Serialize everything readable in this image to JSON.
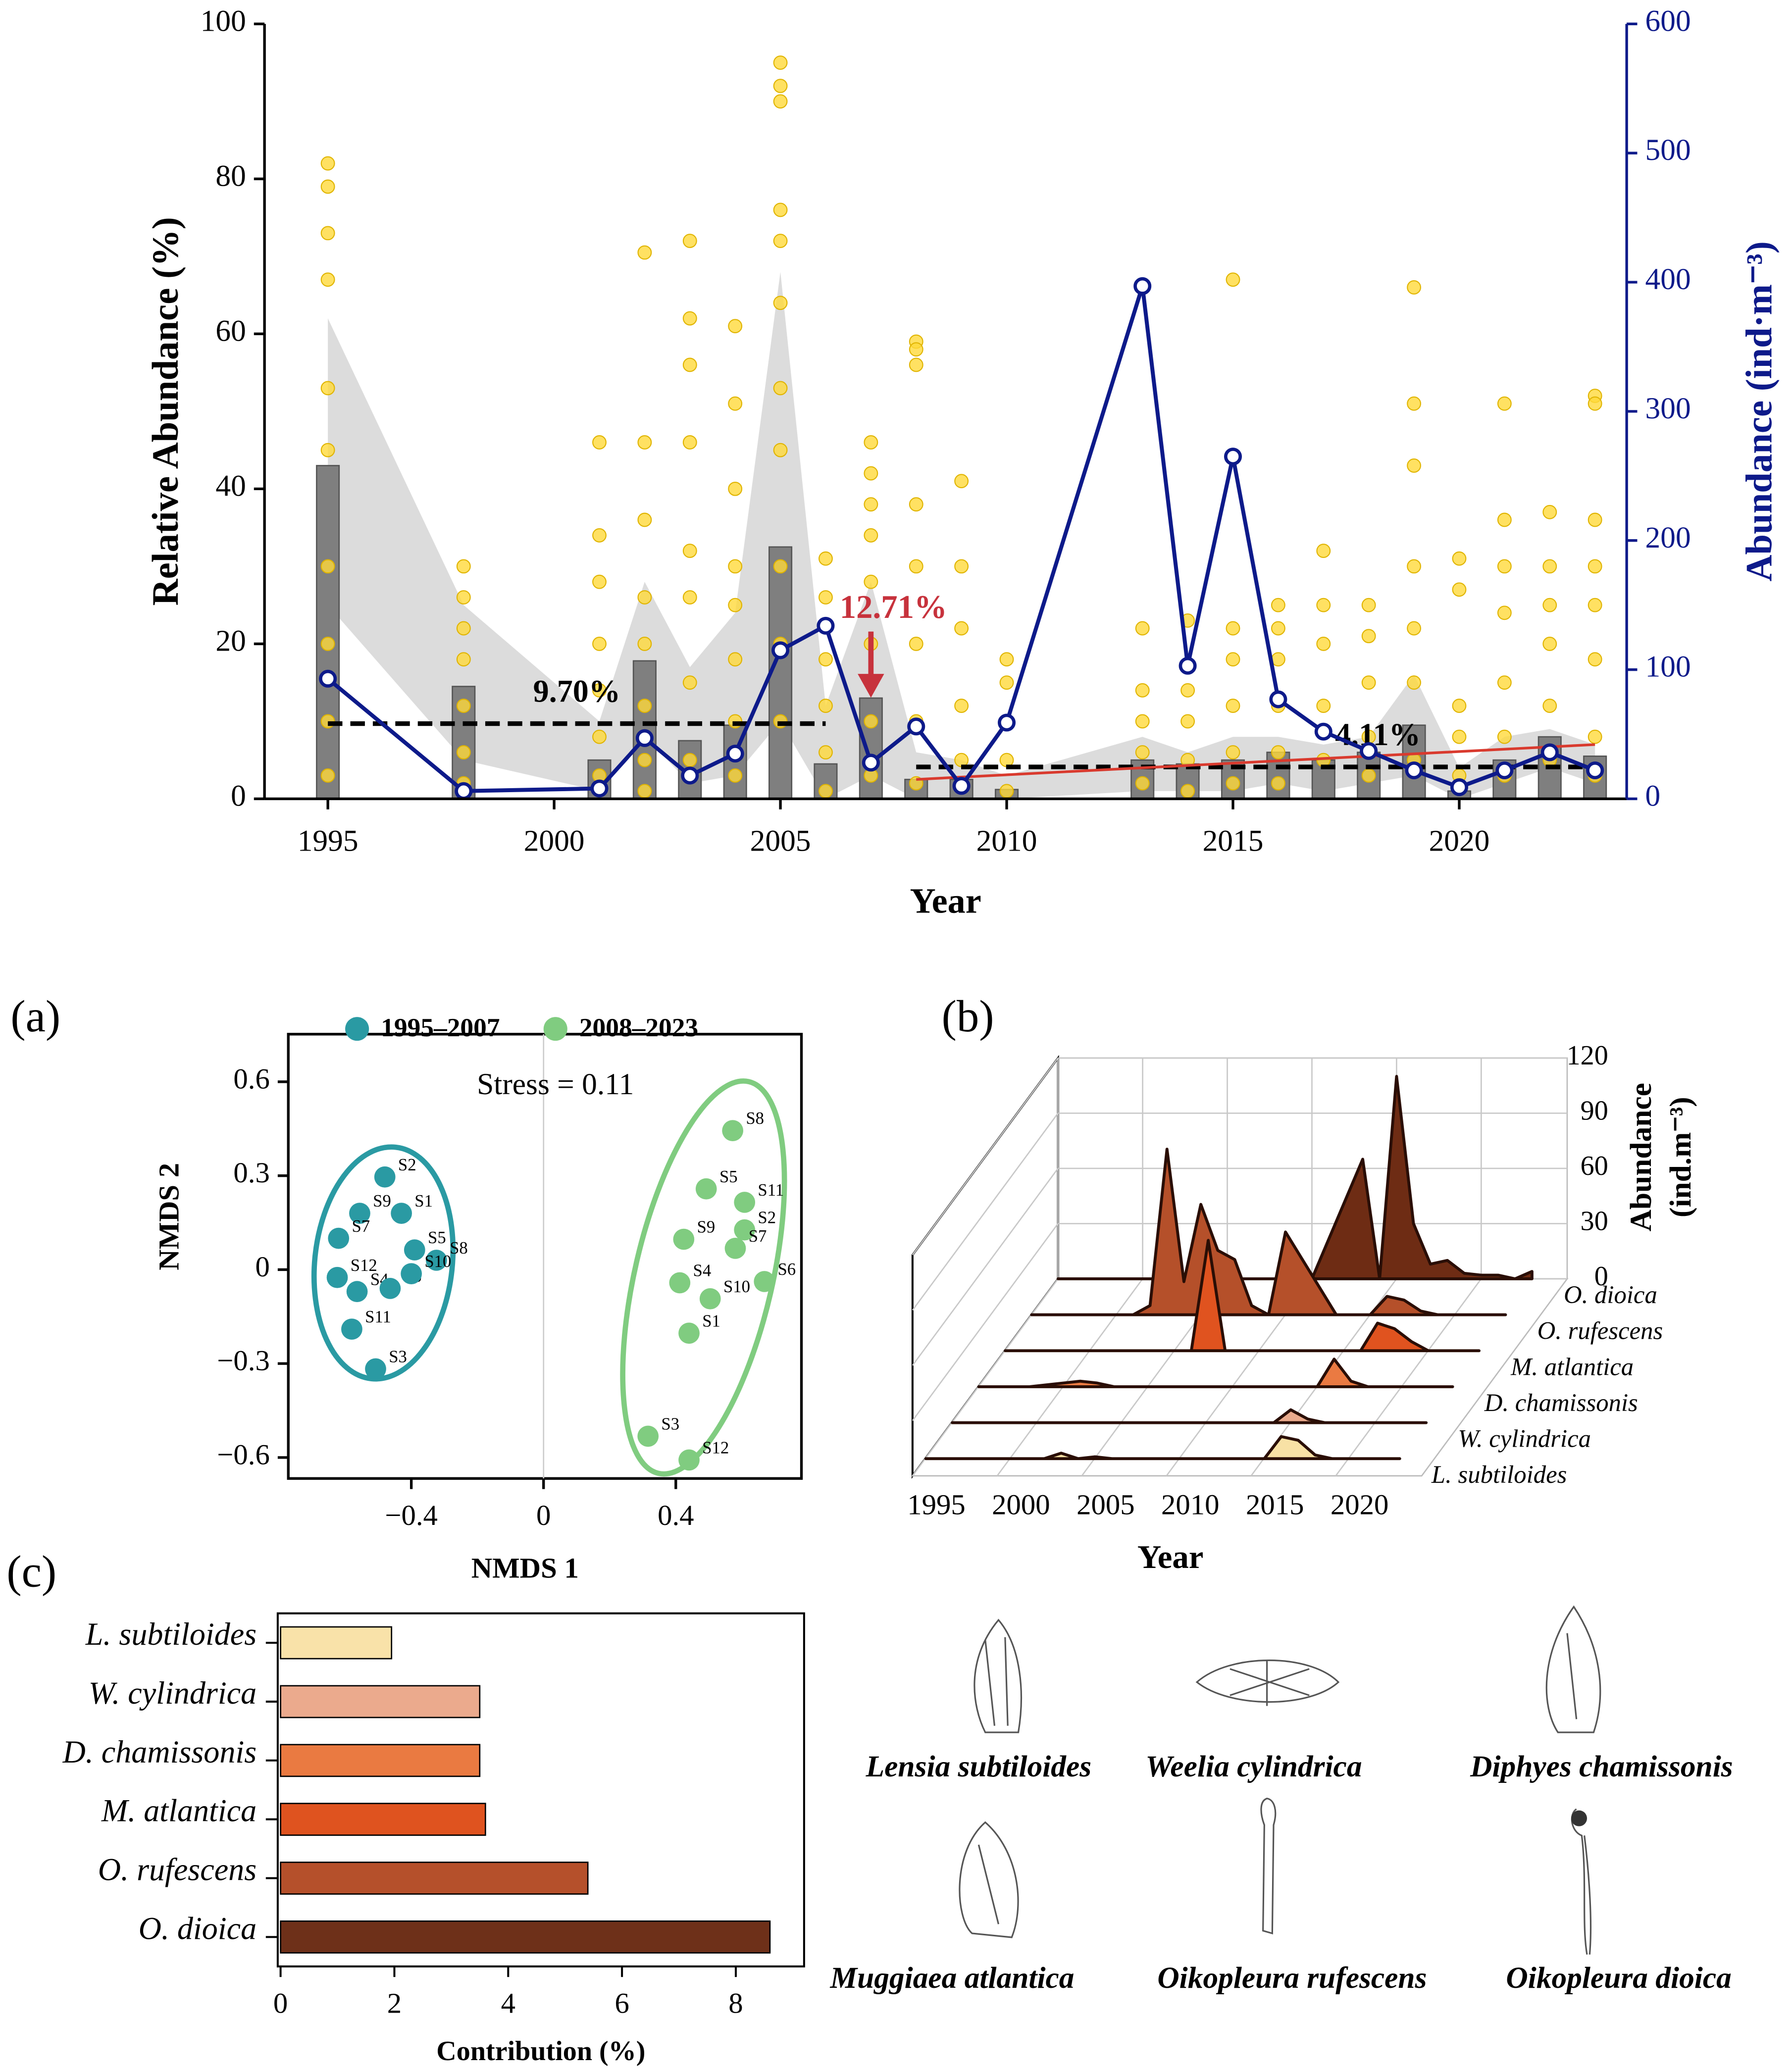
{
  "chart_data": [
    {
      "type": "combo",
      "xlabel": "Year",
      "ylabel": "Relative Abundance (%)",
      "y2label": "Abundance (ind·m⁻³)",
      "xlim": [
        1993.6,
        2023.7
      ],
      "xticks": [
        1995,
        2000,
        2005,
        2010,
        2015,
        2020
      ],
      "ylim": [
        0,
        100
      ],
      "yticks": [
        0,
        20,
        40,
        60,
        80,
        100
      ],
      "y2lim": [
        0,
        600
      ],
      "y2ticks": [
        0,
        100,
        200,
        300,
        400,
        500,
        600
      ],
      "y2color": "#0d1a8a",
      "series": [
        {
          "type": "band",
          "color": "#dcdcdc",
          "x": [
            1995,
            1998,
            2001,
            2002,
            2003,
            2004,
            2005,
            2006,
            2007,
            2008,
            2009,
            2010,
            2013,
            2014,
            2015,
            2016,
            2017,
            2018,
            2019,
            2020,
            2021,
            2022,
            2023
          ],
          "upper": [
            62,
            25,
            10,
            28,
            17,
            24,
            68,
            12,
            28,
            6,
            5,
            3,
            8,
            6,
            8,
            8,
            7,
            8,
            16,
            4,
            8,
            9,
            7
          ],
          "lower": [
            25,
            5,
            1,
            8,
            2,
            3,
            10,
            0,
            3,
            0,
            0,
            0,
            1,
            1,
            1,
            2,
            1,
            2,
            3,
            0,
            2,
            4,
            2
          ]
        },
        {
          "type": "bar",
          "color": "#7f7f7f",
          "x": [
            1995,
            1998,
            2001,
            2002,
            2003,
            2004,
            2005,
            2006,
            2007,
            2008,
            2009,
            2010,
            2013,
            2014,
            2015,
            2016,
            2017,
            2018,
            2019,
            2020,
            2021,
            2022,
            2023
          ],
          "values": [
            43,
            14.5,
            5,
            17.8,
            7.5,
            9.5,
            32.5,
            4.5,
            13,
            2.5,
            2.5,
            1.2,
            5,
            4.5,
            5,
            6,
            5,
            6,
            9.5,
            1,
            5,
            8,
            5.5
          ]
        },
        {
          "type": "scatter",
          "color": "#ffd93b",
          "x": [
            1995,
            1998,
            2001,
            2002,
            2003,
            2004,
            2005,
            2006,
            2007,
            2008,
            2009,
            2010,
            2013,
            2014,
            2015,
            2016,
            2017,
            2018,
            2019,
            2020,
            2021,
            2022,
            2023
          ],
          "values": [
            [
              82,
              79,
              73,
              67,
              53,
              45,
              30,
              20,
              10,
              3
            ],
            [
              30,
              26,
              22,
              18,
              12,
              6,
              2
            ],
            [
              46,
              34,
              28,
              20,
              14,
              8,
              3
            ],
            [
              70.5,
              46,
              36,
              26,
              20,
              12,
              5,
              1
            ],
            [
              72,
              62,
              56,
              46,
              32,
              26,
              15,
              5
            ],
            [
              61,
              51,
              40,
              30,
              25,
              18,
              10,
              3
            ],
            [
              95,
              92,
              90,
              76,
              72,
              64,
              53,
              45,
              30,
              20,
              10
            ],
            [
              31,
              26,
              18,
              12,
              6,
              1
            ],
            [
              46,
              42,
              38,
              34,
              28,
              20,
              10,
              3
            ],
            [
              59,
              58,
              56,
              38,
              30,
              20,
              10,
              2
            ],
            [
              41,
              30,
              22,
              12,
              5
            ],
            [
              18,
              15,
              10,
              5,
              1
            ],
            [
              22,
              14,
              10,
              6,
              2
            ],
            [
              23,
              14,
              10,
              5,
              1
            ],
            [
              67,
              22,
              18,
              12,
              6,
              2
            ],
            [
              25,
              22,
              18,
              12,
              6,
              2
            ],
            [
              32,
              25,
              20,
              12,
              5
            ],
            [
              25,
              21,
              15,
              8,
              3
            ],
            [
              66,
              51,
              43,
              30,
              22,
              15,
              5
            ],
            [
              31,
              27,
              12,
              8,
              3
            ],
            [
              51,
              36,
              30,
              24,
              15,
              8,
              3
            ],
            [
              37,
              30,
              25,
              20,
              12,
              5
            ],
            [
              52,
              51,
              36,
              30,
              25,
              18,
              8,
              3
            ]
          ]
        },
        {
          "type": "mean",
          "color": "#000000",
          "x": [
            1995,
            2006
          ],
          "value": 9.7,
          "value_label": "9.70%"
        },
        {
          "type": "mean",
          "color": "#000000",
          "x": [
            2008,
            2023
          ],
          "value": 4.11,
          "value_label": "4.11%"
        },
        {
          "type": "trend",
          "color": "#d93a2e",
          "x": [
            2008,
            2023
          ],
          "values": [
            2.5,
            7
          ]
        },
        {
          "type": "line",
          "axis": "y2",
          "color": "#0d1a8a",
          "x": [
            1995,
            1998,
            2001,
            2002,
            2003,
            2004,
            2005,
            2006,
            2007,
            2008,
            2009,
            2010,
            2013,
            2014,
            2015,
            2016,
            2017,
            2018,
            2019,
            2020,
            2021,
            2022,
            2023
          ],
          "values": [
            93,
            6,
            8,
            47,
            18,
            35,
            115,
            134,
            28,
            56,
            10,
            59,
            397,
            103,
            265,
            77,
            52,
            37,
            22,
            9,
            22,
            36,
            22
          ]
        },
        {
          "type": "arrow",
          "color": "#c7323c",
          "x": 2007,
          "value": 12.71,
          "value_label": "12.71%"
        }
      ]
    },
    {
      "type": "scatter",
      "panel": "(a)",
      "annotation": "Stress = 0.11",
      "xlabel": "NMDS 1",
      "ylabel": "NMDS 2",
      "xlim": [
        -0.772,
        0.78
      ],
      "ylim": [
        -0.667,
        0.752
      ],
      "xticks": [
        {
          "value": -0.4,
          "label": "−0.4"
        },
        0,
        0.4
      ],
      "yticks": [
        0.6,
        0.3,
        0,
        {
          "value": -0.3,
          "label": "−0.3"
        },
        {
          "value": -0.6,
          "label": "−0.6"
        }
      ],
      "series": [
        {
          "name": "1995–2007",
          "color": "#2a9aa3",
          "labels": [
            "S2",
            "S1",
            "S9",
            "S7",
            "S5",
            "S8",
            "S12",
            "S4",
            "S6",
            "S10",
            "S11",
            "S3"
          ],
          "x": [
            -0.48,
            -0.43,
            -0.556,
            -0.62,
            -0.39,
            -0.324,
            -0.624,
            -0.564,
            -0.464,
            -0.4,
            -0.58,
            -0.508
          ],
          "values": [
            0.296,
            0.18,
            0.18,
            0.1,
            0.063,
            0.03,
            -0.025,
            -0.07,
            -0.06,
            -0.013,
            -0.19,
            -0.317
          ]
        },
        {
          "name": "2008–2023",
          "color": "#80cc80",
          "labels": [
            "S8",
            "S5",
            "S11",
            "S9",
            "S2",
            "S7",
            "S4",
            "S10",
            "S6",
            "S1",
            "S3",
            "S12"
          ],
          "x": [
            0.572,
            0.492,
            0.608,
            0.424,
            0.608,
            0.58,
            0.412,
            0.504,
            0.668,
            0.44,
            0.316,
            0.44
          ],
          "values": [
            0.444,
            0.258,
            0.215,
            0.097,
            0.127,
            0.068,
            -0.042,
            -0.093,
            -0.038,
            -0.203,
            -0.532,
            -0.608
          ]
        }
      ]
    },
    {
      "type": "ridge",
      "panel": "(b)",
      "xlabel": "Year",
      "zlabel": [
        "Abundance",
        "(ind.m⁻³)"
      ],
      "zlim": [
        0,
        120
      ],
      "zticks": [
        0,
        30,
        60,
        90,
        120
      ],
      "xticks": [
        1995,
        2000,
        2005,
        2010,
        2015,
        2020
      ],
      "x": [
        1995,
        1998,
        2001,
        2002,
        2003,
        2004,
        2005,
        2006,
        2007,
        2008,
        2009,
        2010,
        2013,
        2014,
        2015,
        2016,
        2017,
        2018,
        2019,
        2020,
        2021,
        2022,
        2023
      ],
      "series": [
        {
          "name": "O. dioica",
          "color": "#6e2c14",
          "values": [
            0,
            0,
            0,
            0,
            0,
            0,
            0,
            0,
            0,
            0,
            0,
            0,
            65,
            0,
            110,
            30,
            8,
            10,
            3,
            2,
            2,
            0,
            4
          ]
        },
        {
          "name": "O. rufescens",
          "color": "#b5502a",
          "values": [
            0,
            0,
            0,
            5,
            90,
            18,
            60,
            35,
            30,
            5,
            0,
            45,
            0,
            0,
            0,
            10,
            8,
            2,
            0,
            0,
            0,
            0,
            0
          ]
        },
        {
          "name": "M. atlantica",
          "color": "#e0531f",
          "values": [
            0,
            0,
            0,
            0,
            0,
            0,
            0,
            0,
            60,
            0,
            0,
            0,
            0,
            0,
            0,
            0,
            15,
            12,
            5,
            0,
            0,
            0,
            0
          ]
        },
        {
          "name": "D. chamissonis",
          "color": "#ea7a42",
          "values": [
            0,
            0,
            3,
            2,
            0,
            0,
            0,
            0,
            0,
            0,
            0,
            0,
            0,
            0,
            0,
            15,
            3,
            0,
            0,
            0,
            0,
            0,
            0
          ]
        },
        {
          "name": "W. cylindrica",
          "color": "#eaaa8c",
          "values": [
            0,
            0,
            0,
            0,
            0,
            0,
            0,
            0,
            0,
            0,
            0,
            0,
            0,
            0,
            7,
            2,
            0,
            0,
            0,
            0,
            0,
            0,
            0
          ]
        },
        {
          "name": "L. subtiloides",
          "color": "#f8e1a5",
          "values": [
            0,
            0,
            0,
            0,
            3,
            0,
            1,
            0,
            0,
            0,
            0,
            0,
            0,
            0,
            0,
            12,
            10,
            2,
            0,
            0,
            0,
            0,
            0
          ]
        }
      ]
    },
    {
      "type": "hbar",
      "panel": "(c)",
      "xlabel": "Contribution (%)",
      "categories": [
        "L. subtiloides",
        "W. cylindrica",
        "D. chamissonis",
        "M. atlantica",
        "O. rufescens",
        "O. dioica"
      ],
      "values": [
        1.95,
        3.5,
        3.5,
        3.6,
        5.4,
        8.6
      ],
      "colors": [
        "#f9e2a9",
        "#ebaa8d",
        "#ea7a41",
        "#df531f",
        "#b5502b",
        "#6e3019"
      ],
      "xlim": [
        -0.05,
        9.2
      ],
      "xticks": [
        0,
        2,
        4,
        6,
        8
      ]
    }
  ],
  "species_names": [
    "Lensia subtiloides",
    "Weelia cylindrica",
    "Diphyes chamissonis",
    "Muggiaea atlantica",
    "Oikopleura rufescens",
    "Oikopleura  dioica"
  ]
}
